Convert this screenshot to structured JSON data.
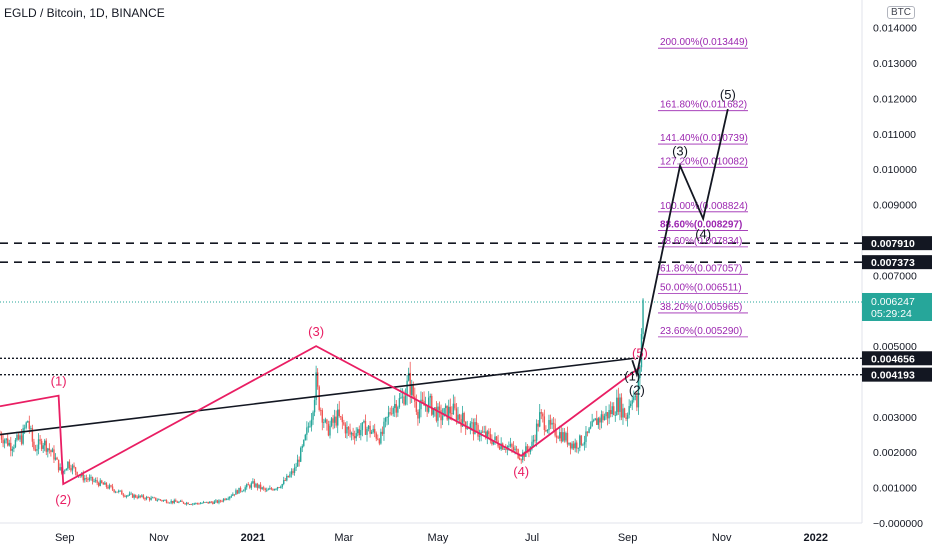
{
  "header": {
    "title": "EGLD / Bitcoin, 1D, BINANCE",
    "currency_badge": "BTC"
  },
  "chart_data": {
    "type": "candlestick",
    "x_axis": {
      "tick_labels": [
        "Sep",
        "Nov",
        "2021",
        "Mar",
        "May",
        "Jul",
        "Sep",
        "Nov",
        "2022"
      ],
      "range": [
        "2020-07-21",
        "2022-01-31"
      ]
    },
    "y_axis": {
      "range": [
        0,
        0.0145
      ],
      "ticks": [
        {
          "value": 0,
          "label": "−0.000000"
        },
        {
          "value": 0.001,
          "label": "0.001000"
        },
        {
          "value": 0.002,
          "label": "0.002000"
        },
        {
          "value": 0.003,
          "label": "0.003000"
        },
        {
          "value": 0.005,
          "label": "0.005000"
        },
        {
          "value": 0.007,
          "label": "0.007000"
        },
        {
          "value": 0.009,
          "label": "0.009000"
        },
        {
          "value": 0.01,
          "label": "0.010000"
        },
        {
          "value": 0.011,
          "label": "0.011000"
        },
        {
          "value": 0.012,
          "label": "0.012000"
        },
        {
          "value": 0.013,
          "label": "0.013000"
        },
        {
          "value": 0.014,
          "label": "0.014000"
        }
      ],
      "position": "right"
    },
    "price_series": [
      {
        "date": "2020-07-21",
        "close": 0.0025
      },
      {
        "date": "2020-07-28",
        "close": 0.0022
      },
      {
        "date": "2020-08-04",
        "close": 0.0024
      },
      {
        "date": "2020-08-08",
        "close": 0.0029
      },
      {
        "date": "2020-08-12",
        "close": 0.0021
      },
      {
        "date": "2020-08-18",
        "close": 0.0023
      },
      {
        "date": "2020-08-25",
        "close": 0.0019
      },
      {
        "date": "2020-08-30",
        "close": 0.0014
      },
      {
        "date": "2020-09-03",
        "close": 0.0017
      },
      {
        "date": "2020-09-12",
        "close": 0.0013
      },
      {
        "date": "2020-09-25",
        "close": 0.0011
      },
      {
        "date": "2020-10-10",
        "close": 0.0008
      },
      {
        "date": "2020-10-25",
        "close": 0.0007
      },
      {
        "date": "2020-11-10",
        "close": 0.0006
      },
      {
        "date": "2020-11-25",
        "close": 0.00055
      },
      {
        "date": "2020-12-10",
        "close": 0.0006
      },
      {
        "date": "2020-12-22",
        "close": 0.0009
      },
      {
        "date": "2021-01-01",
        "close": 0.0011
      },
      {
        "date": "2021-01-10",
        "close": 0.0009
      },
      {
        "date": "2021-01-20",
        "close": 0.0011
      },
      {
        "date": "2021-01-28",
        "close": 0.0015
      },
      {
        "date": "2021-02-03",
        "close": 0.0022
      },
      {
        "date": "2021-02-08",
        "close": 0.0031
      },
      {
        "date": "2021-02-11",
        "close": 0.004
      },
      {
        "date": "2021-02-13",
        "close": 0.0034
      },
      {
        "date": "2021-02-18",
        "close": 0.0026
      },
      {
        "date": "2021-02-25",
        "close": 0.003
      },
      {
        "date": "2021-03-05",
        "close": 0.0025
      },
      {
        "date": "2021-03-15",
        "close": 0.0027
      },
      {
        "date": "2021-03-25",
        "close": 0.0024
      },
      {
        "date": "2021-04-01",
        "close": 0.0033
      },
      {
        "date": "2021-04-08",
        "close": 0.0035
      },
      {
        "date": "2021-04-12",
        "close": 0.004
      },
      {
        "date": "2021-04-18",
        "close": 0.0032
      },
      {
        "date": "2021-04-25",
        "close": 0.0034
      },
      {
        "date": "2021-05-02",
        "close": 0.003
      },
      {
        "date": "2021-05-10",
        "close": 0.0032
      },
      {
        "date": "2021-05-20",
        "close": 0.0028
      },
      {
        "date": "2021-05-30",
        "close": 0.0025
      },
      {
        "date": "2021-06-08",
        "close": 0.0023
      },
      {
        "date": "2021-06-18",
        "close": 0.0021
      },
      {
        "date": "2021-06-24",
        "close": 0.0019
      },
      {
        "date": "2021-07-01",
        "close": 0.0022
      },
      {
        "date": "2021-07-06",
        "close": 0.003
      },
      {
        "date": "2021-07-12",
        "close": 0.0027
      },
      {
        "date": "2021-07-20",
        "close": 0.0025
      },
      {
        "date": "2021-07-28",
        "close": 0.0022
      },
      {
        "date": "2021-08-05",
        "close": 0.0024
      },
      {
        "date": "2021-08-12",
        "close": 0.0029
      },
      {
        "date": "2021-08-20",
        "close": 0.0031
      },
      {
        "date": "2021-08-26",
        "close": 0.0034
      },
      {
        "date": "2021-08-31",
        "close": 0.003
      },
      {
        "date": "2021-09-04",
        "close": 0.0037
      },
      {
        "date": "2021-09-07",
        "close": 0.0033
      },
      {
        "date": "2021-09-09",
        "close": 0.0045
      },
      {
        "date": "2021-09-11",
        "close": 0.0062
      }
    ],
    "horizontal_levels": [
      {
        "value": 0.00791,
        "label": "0.007910",
        "style": "dashed"
      },
      {
        "value": 0.007373,
        "label": "0.007373",
        "style": "dashed"
      },
      {
        "value": 0.004656,
        "label": "0.004656",
        "style": "dotted"
      },
      {
        "value": 0.004193,
        "label": "0.004193",
        "style": "dotted"
      }
    ],
    "last_price": {
      "value": 0.006247,
      "label": "0.006247",
      "countdown": "05:29:24",
      "color": "#26a69a"
    },
    "fibonacci_levels": [
      {
        "label": "200.00%(0.013449)",
        "value": 0.013449,
        "bold": false
      },
      {
        "label": "161.80%(0.011682)",
        "value": 0.011682,
        "bold": false
      },
      {
        "label": "141.40%(0.010739)",
        "value": 0.010739,
        "bold": false
      },
      {
        "label": "127.20%(0.010082)",
        "value": 0.010082,
        "bold": false
      },
      {
        "label": "100.00%(0.008824)",
        "value": 0.008824,
        "bold": false
      },
      {
        "label": "88.60%(0.008297)",
        "value": 0.008297,
        "bold": true
      },
      {
        "label": "78.60%(0.007834)",
        "value": 0.007834,
        "bold": false
      },
      {
        "label": "61.80%(0.007057)",
        "value": 0.007057,
        "bold": false
      },
      {
        "label": "50.00%(0.006511)",
        "value": 0.006511,
        "bold": false
      },
      {
        "label": "38.20%(0.005965)",
        "value": 0.005965,
        "bold": false
      },
      {
        "label": "23.60%(0.005290)",
        "value": 0.00529,
        "bold": false
      }
    ],
    "fib_label_anchor_date": "2021-09-22",
    "trendline": [
      {
        "date": "2020-07-21",
        "value": 0.0025
      },
      {
        "date": "2021-09-04",
        "value": 0.00465
      }
    ],
    "wave_old": {
      "color": "#e91e63",
      "points": [
        {
          "date": "2020-07-21",
          "value": 0.0033,
          "label": ""
        },
        {
          "date": "2020-08-28",
          "value": 0.0036,
          "label": "(1)"
        },
        {
          "date": "2020-08-31",
          "value": 0.0011,
          "label": "(2)"
        },
        {
          "date": "2021-02-11",
          "value": 0.005,
          "label": "(3)"
        },
        {
          "date": "2021-06-24",
          "value": 0.0019,
          "label": "(4)"
        },
        {
          "date": "2021-09-09",
          "value": 0.0044,
          "label": "(5)"
        }
      ]
    },
    "wave_new": {
      "color": "#131722",
      "points": [
        {
          "date": "2021-09-04",
          "value": 0.0046,
          "label": "(1)"
        },
        {
          "date": "2021-09-07",
          "value": 0.0042,
          "label": "(2)"
        },
        {
          "date": "2021-10-05",
          "value": 0.0101,
          "label": "(3)"
        },
        {
          "date": "2021-10-20",
          "value": 0.0086,
          "label": "(4)"
        },
        {
          "date": "2021-11-05",
          "value": 0.0117,
          "label": "(5)"
        }
      ]
    },
    "grid": false,
    "legend": "none"
  },
  "colors": {
    "up": "#26a69a",
    "down": "#ef5350",
    "fib": "#9c27b0",
    "level_box": "#131722",
    "axis_text": "#131722"
  }
}
